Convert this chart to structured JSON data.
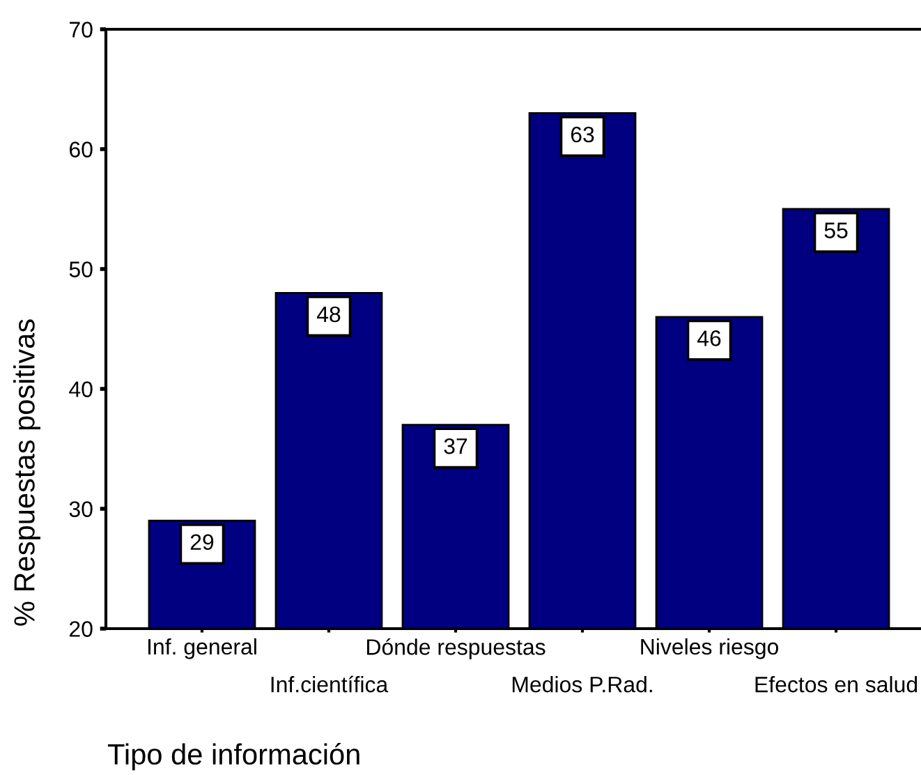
{
  "chart_data": {
    "type": "bar",
    "categories": [
      "Inf. general",
      "Inf.científica",
      "Dónde respuestas",
      "Medios P.Rad.",
      "Niveles riesgo",
      "Efectos en salud"
    ],
    "values": [
      29,
      48,
      37,
      63,
      46,
      55
    ],
    "color": "#000080",
    "ylim": [
      20,
      70
    ],
    "yticks": [
      20,
      30,
      40,
      50,
      60,
      70
    ],
    "xlabel": "Tipo de información",
    "ylabel": "% Respuestas positivas",
    "data_labels": true,
    "grid": false
  }
}
